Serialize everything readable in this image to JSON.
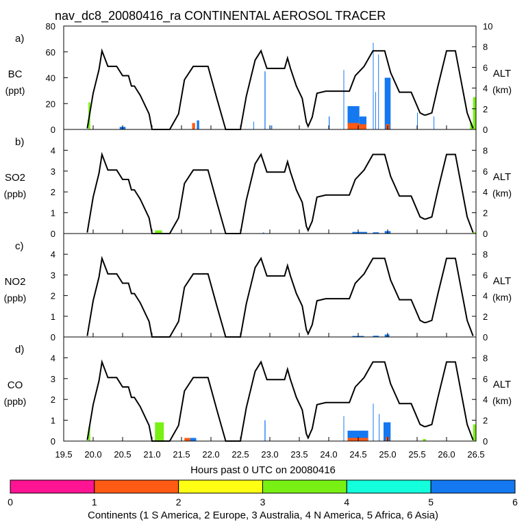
{
  "title": "nav_dc8_20080416_ra CONTINENTAL AEROSOL TRACER",
  "x_axis": {
    "label": "Hours past 0 UTC on 20080416",
    "min": 19.5,
    "max": 26.5,
    "ticks": [
      "19.5",
      "20.0",
      "20.5",
      "21.0",
      "21.5",
      "22.0",
      "22.5",
      "23.0",
      "23.5",
      "24.0",
      "24.5",
      "25.0",
      "25.5",
      "26.0",
      "26.5"
    ]
  },
  "right_axis": {
    "label": "ALT",
    "unit": "(km)",
    "min": 0,
    "max": 10
  },
  "colorbar": {
    "label": "Continents (1 S America, 2 Europe, 3 Australia, 4 N America, 5 Africa, 6 Asia)",
    "tick_labels": [
      "0",
      "1",
      "2",
      "3",
      "4",
      "5",
      "6"
    ],
    "colors": [
      "#ff1493",
      "#ff5a14",
      "#ffff14",
      "#78f014",
      "#14ffdc",
      "#1478f0"
    ]
  },
  "chart_data": {
    "type": "area",
    "altitude_km": {
      "x": [
        19.9,
        20.0,
        20.1,
        20.15,
        20.25,
        20.4,
        20.5,
        20.6,
        20.65,
        20.7,
        20.8,
        20.95,
        21.0,
        21.3,
        21.45,
        21.55,
        21.7,
        21.85,
        21.95,
        22.1,
        22.25,
        22.4,
        22.5,
        22.6,
        22.75,
        22.85,
        22.95,
        23.05,
        23.25,
        23.3,
        23.35,
        23.45,
        23.55,
        23.62,
        23.65,
        23.72,
        23.8,
        23.95,
        24.1,
        24.2,
        24.35,
        24.45,
        24.6,
        24.75,
        24.85,
        24.95,
        25.05,
        25.2,
        25.4,
        25.55,
        25.62,
        25.65,
        25.75,
        25.85,
        26.0,
        26.05,
        26.15,
        26.25,
        26.35,
        26.45
      ],
      "y": [
        0.1,
        3.5,
        5.8,
        7.6,
        6.1,
        6.1,
        5.2,
        5.2,
        4.2,
        4.2,
        3.3,
        1.5,
        0,
        0,
        1.5,
        4.8,
        6.1,
        6.1,
        6.1,
        3.0,
        0,
        0,
        0,
        3.2,
        6.7,
        7.6,
        5.9,
        5.9,
        5.9,
        6.9,
        5.9,
        4.2,
        3.0,
        0.7,
        0.3,
        1.2,
        3.5,
        3.7,
        3.7,
        3.7,
        3.7,
        5.2,
        6.1,
        7.6,
        7.6,
        7.6,
        5.5,
        3.6,
        3.6,
        1.6,
        1.4,
        1.4,
        1.6,
        4.1,
        7.6,
        7.6,
        7.6,
        4.6,
        1.6,
        0.1
      ]
    },
    "panels": [
      {
        "id": "a",
        "species": "BC",
        "unit": "(ppt)",
        "ylim": [
          0,
          80
        ],
        "yticks": [
          "0",
          "20",
          "40",
          "60",
          "80"
        ],
        "right_ticks": [
          "0",
          "2",
          "4",
          "6",
          "8",
          "10"
        ],
        "bars": [
          {
            "x": 19.92,
            "w": 0.03,
            "v": 21,
            "c": 4
          },
          {
            "x": 20.45,
            "w": 0.1,
            "v": 2,
            "c": 6
          },
          {
            "x": 21.68,
            "w": 0.05,
            "v": 5,
            "c": 2
          },
          {
            "x": 21.76,
            "w": 0.04,
            "v": 7,
            "c": 6
          },
          {
            "x": 22.91,
            "w": 0.015,
            "v": 45,
            "c": 6
          },
          {
            "x": 22.72,
            "w": 0.01,
            "v": 6,
            "c": 6
          },
          {
            "x": 23.02,
            "w": 0.02,
            "v": 3,
            "c": 6
          },
          {
            "x": 24.0,
            "w": 0.015,
            "v": 10,
            "c": 6
          },
          {
            "x": 24.25,
            "w": 0.012,
            "v": 46,
            "c": 6
          },
          {
            "x": 24.32,
            "w": 0.2,
            "v": 18,
            "c": 6
          },
          {
            "x": 24.32,
            "w": 0.2,
            "v": 5,
            "c": 2
          },
          {
            "x": 24.52,
            "w": 0.12,
            "v": 10,
            "c": 6
          },
          {
            "x": 24.52,
            "w": 0.12,
            "v": 4,
            "c": 2
          },
          {
            "x": 24.75,
            "w": 0.012,
            "v": 67,
            "c": 6
          },
          {
            "x": 24.79,
            "w": 0.012,
            "v": 29,
            "c": 6
          },
          {
            "x": 24.84,
            "w": 0.012,
            "v": 58,
            "c": 6
          },
          {
            "x": 24.95,
            "w": 0.1,
            "v": 40,
            "c": 6
          },
          {
            "x": 24.97,
            "w": 0.06,
            "v": 4,
            "c": 2
          },
          {
            "x": 25.5,
            "w": 0.01,
            "v": 13,
            "c": 6
          },
          {
            "x": 25.78,
            "w": 0.01,
            "v": 10,
            "c": 6
          },
          {
            "x": 26.4,
            "w": 0.04,
            "v": 5,
            "c": 4
          },
          {
            "x": 26.45,
            "w": 0.05,
            "v": 25,
            "c": 4
          }
        ]
      },
      {
        "id": "b",
        "species": "SO2",
        "unit": "(ppb)",
        "ylim": [
          0,
          5
        ],
        "yticks": [
          "0",
          "1",
          "2",
          "3",
          "4"
        ],
        "right_ticks": [
          "0",
          "2",
          "4",
          "6",
          "8"
        ],
        "bars": [
          {
            "x": 21.05,
            "w": 0.12,
            "v": 0.15,
            "c": 4
          },
          {
            "x": 22.88,
            "w": 0.02,
            "v": 0.05,
            "c": 6
          },
          {
            "x": 24.4,
            "w": 0.25,
            "v": 0.08,
            "c": 6
          },
          {
            "x": 24.75,
            "w": 0.1,
            "v": 0.06,
            "c": 6
          },
          {
            "x": 24.95,
            "w": 0.1,
            "v": 0.12,
            "c": 6
          },
          {
            "x": 26.45,
            "w": 0.05,
            "v": 0.06,
            "c": 4
          }
        ]
      },
      {
        "id": "c",
        "species": "NO2",
        "unit": "(ppb)",
        "ylim": [
          0,
          5
        ],
        "yticks": [
          "0",
          "1",
          "2",
          "3",
          "4"
        ],
        "right_ticks": [
          "0",
          "2",
          "4",
          "6",
          "8"
        ],
        "bars": [
          {
            "x": 24.4,
            "w": 0.2,
            "v": 0.05,
            "c": 6
          },
          {
            "x": 24.75,
            "w": 0.1,
            "v": 0.06,
            "c": 6
          },
          {
            "x": 24.95,
            "w": 0.08,
            "v": 0.12,
            "c": 6
          }
        ]
      },
      {
        "id": "d",
        "species": "CO",
        "unit": "(ppb)",
        "ylim": [
          0,
          5
        ],
        "yticks": [
          "0",
          "1",
          "2",
          "3",
          "4"
        ],
        "right_ticks": [
          "0",
          "2",
          "4",
          "6",
          "8"
        ],
        "bars": [
          {
            "x": 19.92,
            "w": 0.03,
            "v": 0.7,
            "c": 4
          },
          {
            "x": 21.05,
            "w": 0.15,
            "v": 0.9,
            "c": 4
          },
          {
            "x": 21.55,
            "w": 0.1,
            "v": 0.15,
            "c": 2
          },
          {
            "x": 21.65,
            "w": 0.1,
            "v": 0.15,
            "c": 6
          },
          {
            "x": 22.91,
            "w": 0.015,
            "v": 1.0,
            "c": 6
          },
          {
            "x": 24.25,
            "w": 0.012,
            "v": 1.2,
            "c": 6
          },
          {
            "x": 24.32,
            "w": 0.35,
            "v": 0.5,
            "c": 6
          },
          {
            "x": 24.32,
            "w": 0.35,
            "v": 0.15,
            "c": 2
          },
          {
            "x": 24.75,
            "w": 0.012,
            "v": 1.8,
            "c": 6
          },
          {
            "x": 24.85,
            "w": 0.012,
            "v": 1.3,
            "c": 6
          },
          {
            "x": 24.93,
            "w": 0.12,
            "v": 0.9,
            "c": 6
          },
          {
            "x": 24.97,
            "w": 0.05,
            "v": 0.2,
            "c": 2
          },
          {
            "x": 25.6,
            "w": 0.05,
            "v": 0.1,
            "c": 4
          },
          {
            "x": 26.45,
            "w": 0.05,
            "v": 0.8,
            "c": 4
          }
        ]
      }
    ]
  }
}
